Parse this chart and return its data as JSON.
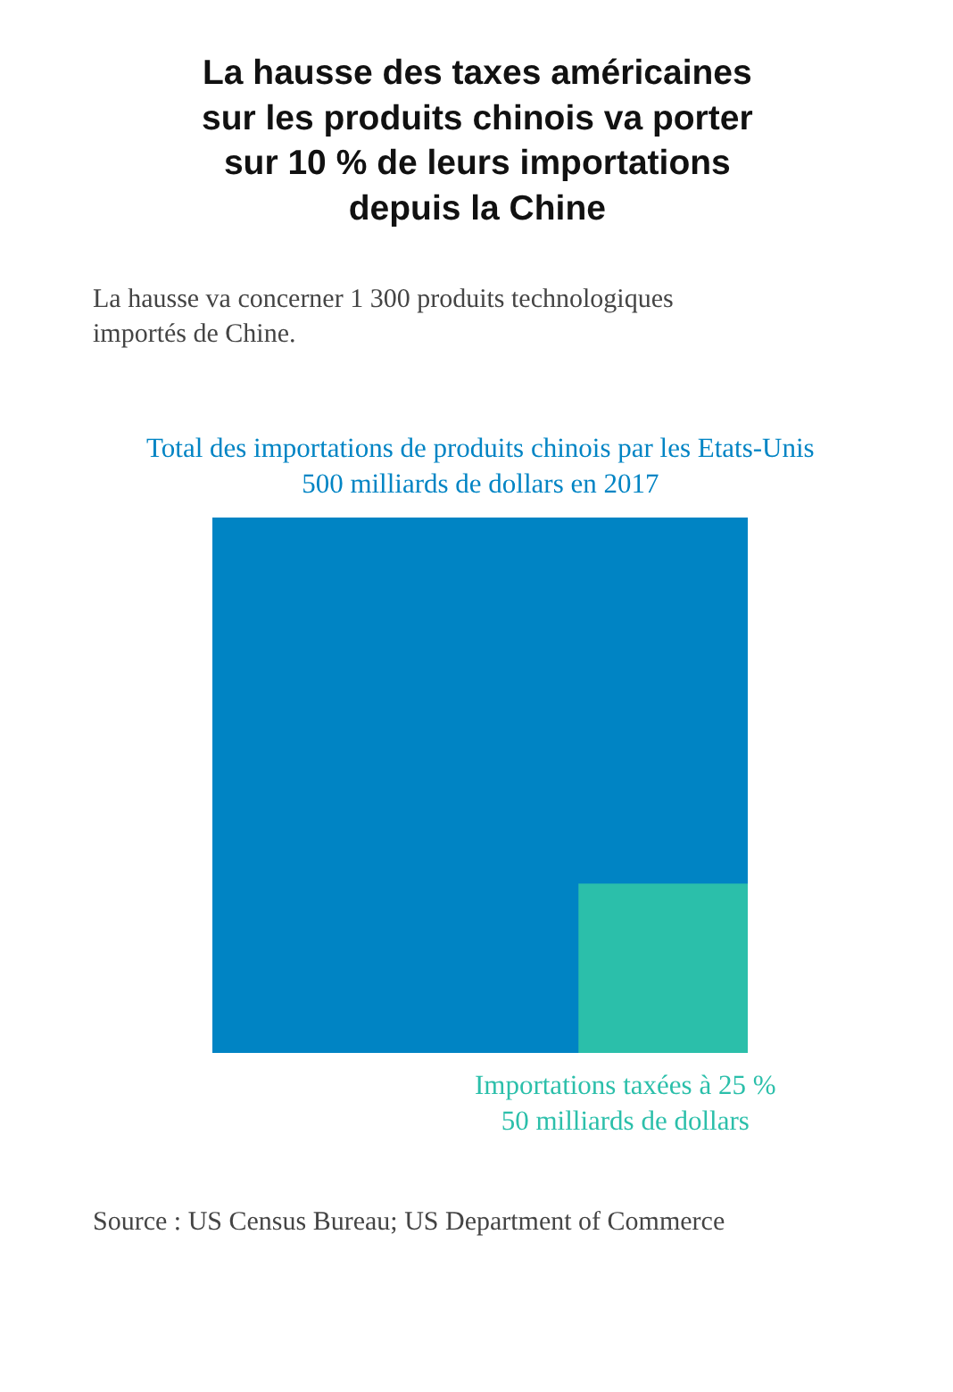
{
  "chart_data": {
    "type": "other",
    "title": "La hausse des taxes américaines sur les produits chinois va porter sur 10 % de leurs importations depuis la Chine",
    "subtitle": "La hausse va concerner 1 300 produits technologiques importés de Chine.",
    "categories": [
      "Total des importations de produits chinois par les Etats-Unis",
      "Importations taxées à 25 %"
    ],
    "values": [
      500,
      50
    ],
    "value_labels": [
      "500 milliards de dollars en 2017",
      "50 milliards de dollars"
    ],
    "colors": [
      "#0084c4",
      "#2bbfaa"
    ],
    "annotations": [
      "Source : US Census Bureau; US Department of Commerce"
    ]
  }
}
